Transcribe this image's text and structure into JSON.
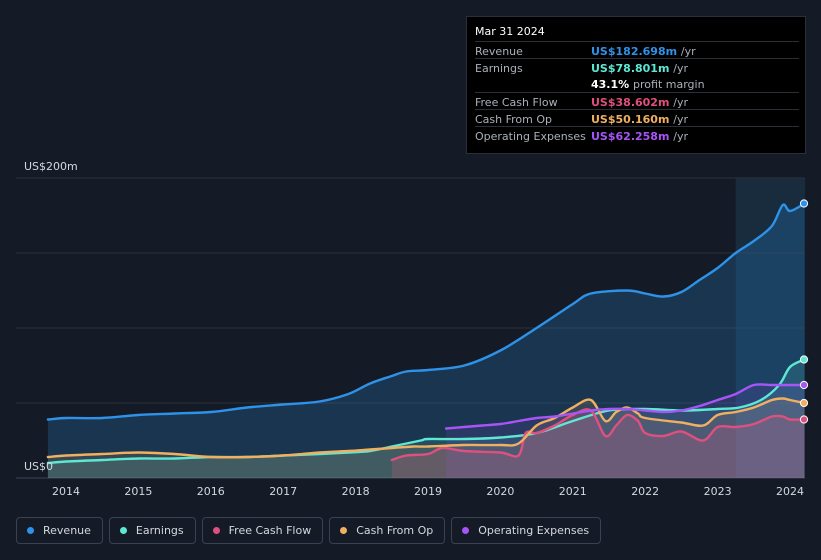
{
  "tooltip": {
    "date": "Mar 31 2024",
    "rows": [
      {
        "label": "Revenue",
        "value": "US$182.698m",
        "unit": "/yr",
        "color": "#2e93e8"
      },
      {
        "label": "Earnings",
        "value": "US$78.801m",
        "unit": "/yr",
        "color": "#5ee8d4"
      },
      {
        "label": "",
        "value": "43.1%",
        "unit": "profit margin",
        "color": "#ffffff"
      },
      {
        "label": "Free Cash Flow",
        "value": "US$38.602m",
        "unit": "/yr",
        "color": "#e0507f"
      },
      {
        "label": "Cash From Op",
        "value": "US$50.160m",
        "unit": "/yr",
        "color": "#f0b060"
      },
      {
        "label": "Operating Expenses",
        "value": "US$62.258m",
        "unit": "/yr",
        "color": "#a855f7"
      }
    ]
  },
  "legend": [
    {
      "label": "Revenue",
      "color": "#2e93e8"
    },
    {
      "label": "Earnings",
      "color": "#5ee8d4"
    },
    {
      "label": "Free Cash Flow",
      "color": "#e0507f"
    },
    {
      "label": "Cash From Op",
      "color": "#f0b060"
    },
    {
      "label": "Operating Expenses",
      "color": "#a855f7"
    }
  ],
  "chart_data": {
    "type": "area",
    "title": "",
    "ylabel_top": "US$200m",
    "ylabel_bottom": "US$0",
    "ylim": [
      0,
      200
    ],
    "xlim": [
      2013.3,
      2024.3
    ],
    "x_ticks": [
      2014,
      2015,
      2016,
      2017,
      2018,
      2019,
      2020,
      2021,
      2022,
      2023,
      2024
    ],
    "x_tick_labels": [
      "2014",
      "2015",
      "2016",
      "2017",
      "2018",
      "2019",
      "2020",
      "2021",
      "2022",
      "2023",
      "2024"
    ],
    "highlight_start": 2023.25,
    "series": [
      {
        "name": "Revenue",
        "color": "#2e93e8",
        "x": [
          2013.75,
          2014.0,
          2014.5,
          2015.0,
          2015.5,
          2016.0,
          2016.5,
          2017.0,
          2017.5,
          2017.9,
          2018.2,
          2018.5,
          2018.7,
          2019.0,
          2019.5,
          2020.0,
          2020.5,
          2021.0,
          2021.25,
          2021.75,
          2022.0,
          2022.25,
          2022.5,
          2022.75,
          2023.0,
          2023.25,
          2023.5,
          2023.75,
          2023.9,
          2024.0,
          2024.2
        ],
        "values": [
          39,
          40,
          40,
          42,
          43,
          44,
          47,
          49,
          51,
          56,
          63,
          68,
          71,
          72,
          75,
          85,
          100,
          116,
          123,
          125,
          123,
          121,
          124,
          132,
          140,
          150,
          158,
          168,
          182,
          178,
          183
        ]
      },
      {
        "name": "Earnings",
        "color": "#5ee8d4",
        "x": [
          2013.75,
          2014.0,
          2014.5,
          2015.0,
          2015.5,
          2016.0,
          2016.5,
          2017.0,
          2017.5,
          2017.9,
          2018.2,
          2018.5,
          2018.9,
          2019.0,
          2019.5,
          2020.0,
          2020.5,
          2021.0,
          2021.5,
          2022.0,
          2022.5,
          2023.0,
          2023.3,
          2023.6,
          2023.85,
          2024.0,
          2024.2
        ],
        "values": [
          10,
          11,
          12,
          13,
          13,
          14,
          14,
          15,
          16,
          17,
          18,
          21,
          25,
          26,
          26,
          27,
          30,
          38,
          45,
          46,
          45,
          46,
          47,
          52,
          62,
          74,
          79
        ]
      },
      {
        "name": "Free Cash Flow",
        "color": "#e0507f",
        "x": [
          2018.5,
          2018.7,
          2019.0,
          2019.2,
          2019.5,
          2020.0,
          2020.25,
          2020.35,
          2020.5,
          2020.75,
          2021.0,
          2021.25,
          2021.45,
          2021.6,
          2021.75,
          2021.9,
          2022.0,
          2022.25,
          2022.5,
          2022.8,
          2023.0,
          2023.25,
          2023.5,
          2023.75,
          2023.9,
          2024.0,
          2024.2
        ],
        "values": [
          12,
          15,
          16,
          20,
          18,
          17,
          15,
          30,
          30,
          35,
          42,
          45,
          28,
          35,
          42,
          38,
          30,
          28,
          31,
          25,
          34,
          34,
          36,
          41,
          41,
          39,
          39
        ]
      },
      {
        "name": "Cash From Op",
        "color": "#f0b060",
        "x": [
          2013.75,
          2014.0,
          2014.5,
          2015.0,
          2015.5,
          2016.0,
          2016.5,
          2017.0,
          2017.5,
          2017.9,
          2018.2,
          2018.5,
          2018.8,
          2019.0,
          2019.5,
          2020.0,
          2020.25,
          2020.5,
          2020.75,
          2021.0,
          2021.25,
          2021.45,
          2021.6,
          2021.75,
          2021.9,
          2022.0,
          2022.5,
          2022.8,
          2023.0,
          2023.25,
          2023.5,
          2023.75,
          2023.9,
          2024.0,
          2024.2
        ],
        "values": [
          14,
          15,
          16,
          17,
          16,
          14,
          14,
          15,
          17,
          18,
          19,
          20,
          21,
          21,
          22,
          22,
          23,
          35,
          40,
          47,
          52,
          38,
          44,
          47,
          43,
          40,
          37,
          35,
          42,
          44,
          47,
          52,
          53,
          52,
          50
        ]
      },
      {
        "name": "Operating Expenses",
        "color": "#a855f7",
        "x": [
          2019.25,
          2019.5,
          2019.75,
          2020.0,
          2020.25,
          2020.5,
          2020.75,
          2021.0,
          2021.25,
          2021.5,
          2021.75,
          2022.0,
          2022.25,
          2022.5,
          2022.75,
          2023.0,
          2023.25,
          2023.5,
          2023.75,
          2024.0,
          2024.2
        ],
        "values": [
          33,
          34,
          35,
          36,
          38,
          40,
          41,
          43,
          45,
          46,
          46,
          45,
          44,
          45,
          48,
          52,
          56,
          62,
          62,
          62,
          62
        ]
      }
    ]
  }
}
